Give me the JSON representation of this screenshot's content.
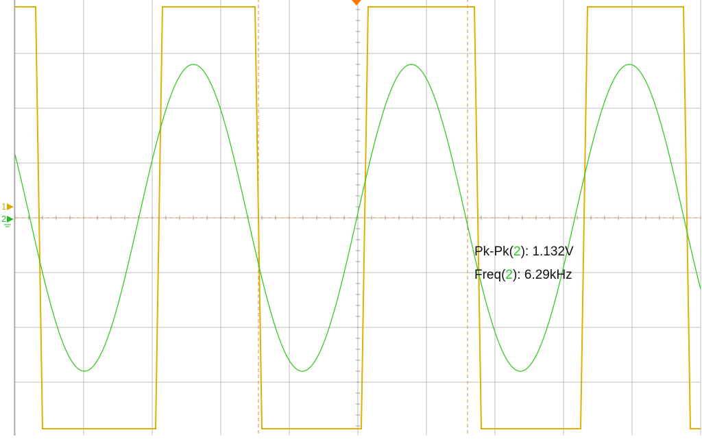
{
  "chart_data": {
    "type": "line",
    "title": "",
    "xlabel": "",
    "ylabel": "",
    "grid": true,
    "grid_divisions": {
      "x": 10,
      "y": 8
    },
    "xlim": [
      0,
      10
    ],
    "ylim": [
      -4,
      4
    ],
    "series": [
      {
        "channel": "1",
        "color": "#e0b000",
        "shape": "square",
        "high_level": 3.85,
        "low_level": -3.85,
        "rising_edges": [
          2.1,
          5.1,
          8.3
        ],
        "falling_edges": [
          0.35,
          3.55,
          6.75,
          9.8
        ],
        "values_note": ""
      },
      {
        "channel": "2",
        "color": "#33cc22",
        "shape": "sine",
        "amplitude": 2.8,
        "offset": 0.0,
        "period": 3.18,
        "peak_x": [
          2.6,
          5.75,
          8.95
        ],
        "trough_x": [
          1.0,
          4.2,
          7.35
        ]
      }
    ],
    "markers": {
      "ch1_marker": "1",
      "ch2_marker": "2",
      "trigger_color": "#ff7700",
      "cursor_color": "#e08a40"
    }
  },
  "measurements": [
    {
      "prefix": "Pk-Pk(",
      "channel": "2",
      "suffix": "): 1.132V"
    },
    {
      "prefix": "Freq(",
      "channel": "2",
      "suffix": "): 6.29kHz"
    }
  ]
}
